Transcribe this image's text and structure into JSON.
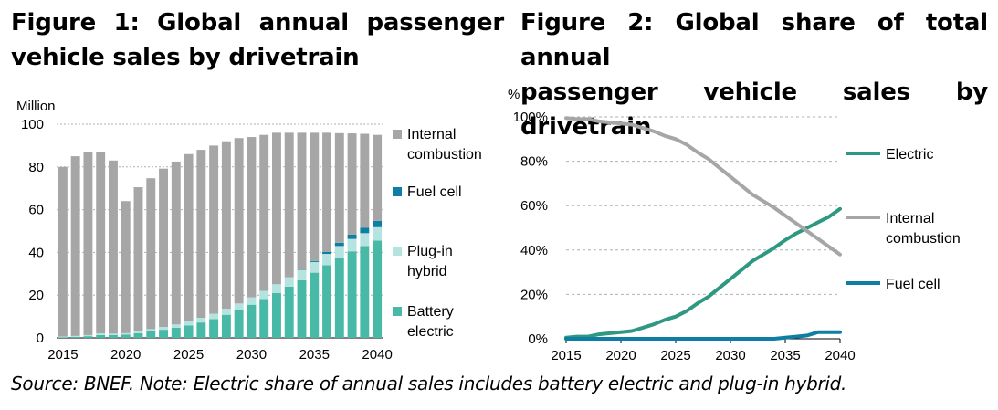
{
  "figure1": {
    "title_line1": "Figure 1: Global annual passenger",
    "title_line2": "vehicle sales by drivetrain"
  },
  "figure2": {
    "title_line1": "Figure 2: Global share of total annual",
    "title_line2": "passenger vehicle sales by drivetrain"
  },
  "source_note": "Source: BNEF. Note: Electric share of annual sales includes battery electric and plug-in hybrid.",
  "colors": {
    "internal_combustion": "#a6a6a6",
    "fuel_cell": "#0e7ea3",
    "plug_in_hybrid": "#b5e3df",
    "battery_electric": "#47b9a6",
    "electric_line": "#2e9882",
    "ice_line": "#a6a6a6",
    "fuel_cell_line": "#0e7ea3",
    "grid": "#b0b0b0"
  },
  "chart_data": [
    {
      "type": "bar",
      "stacked": true,
      "ylabel": "Million",
      "ylim": [
        0,
        100
      ],
      "yticks": [
        "0",
        "20",
        "40",
        "60",
        "80",
        "100"
      ],
      "xtick_labels": [
        "2015",
        "2020",
        "2025",
        "2030",
        "2035",
        "2040"
      ],
      "categories": [
        2015,
        2016,
        2017,
        2018,
        2019,
        2020,
        2021,
        2022,
        2023,
        2024,
        2025,
        2026,
        2027,
        2028,
        2029,
        2030,
        2031,
        2032,
        2033,
        2034,
        2035,
        2036,
        2037,
        2038,
        2039,
        2040
      ],
      "series": [
        {
          "name": "Battery electric",
          "legend": [
            "Battery",
            "electric"
          ],
          "values": [
            0.3,
            0.5,
            0.8,
            1.3,
            1.3,
            1.5,
            2.2,
            3.0,
            3.8,
            4.7,
            5.8,
            7.2,
            8.8,
            10.8,
            13.0,
            15.5,
            18.2,
            21.0,
            24.0,
            27.0,
            30.5,
            34.0,
            37.5,
            40.5,
            43.0,
            45.5
          ]
        },
        {
          "name": "Plug-in hybrid",
          "legend": [
            "Plug-in",
            "hybrid"
          ],
          "values": [
            0.3,
            0.4,
            0.5,
            0.8,
            0.7,
            0.7,
            0.9,
            1.1,
            1.3,
            1.6,
            1.9,
            2.2,
            2.5,
            2.8,
            3.1,
            3.5,
            3.8,
            4.1,
            4.4,
            4.7,
            5.0,
            5.3,
            5.5,
            5.8,
            6.0,
            6.3
          ]
        },
        {
          "name": "Fuel cell",
          "legend": [
            "Fuel cell"
          ],
          "values": [
            0,
            0,
            0,
            0,
            0,
            0,
            0,
            0,
            0,
            0,
            0,
            0,
            0,
            0,
            0,
            0,
            0,
            0,
            0,
            0.2,
            0.5,
            1.0,
            1.5,
            2.0,
            2.5,
            3.0
          ]
        },
        {
          "name": "Internal combustion",
          "legend": [
            "Internal",
            "combustion"
          ],
          "values": [
            79.4,
            84.1,
            85.7,
            84.9,
            81.0,
            61.8,
            67.4,
            70.6,
            74.1,
            76.2,
            78.3,
            78.6,
            78.7,
            78.4,
            77.4,
            75.0,
            73.0,
            70.9,
            67.6,
            64.1,
            60.0,
            55.7,
            51.3,
            47.4,
            44.0,
            40.2
          ]
        }
      ]
    },
    {
      "type": "line",
      "ylabel": "%",
      "ylim": [
        0,
        100
      ],
      "yticks": [
        "0%",
        "20%",
        "40%",
        "60%",
        "80%",
        "100%"
      ],
      "xtick_labels": [
        "2015",
        "2020",
        "2025",
        "2030",
        "2035",
        "2040"
      ],
      "x": [
        2015,
        2016,
        2017,
        2018,
        2019,
        2020,
        2021,
        2022,
        2023,
        2024,
        2025,
        2026,
        2027,
        2028,
        2029,
        2030,
        2031,
        2032,
        2033,
        2034,
        2035,
        2036,
        2037,
        2038,
        2039,
        2040
      ],
      "series": [
        {
          "name": "Electric",
          "legend": [
            "Electric"
          ],
          "values": [
            0.5,
            1,
            1,
            2,
            2.5,
            3,
            3.5,
            5,
            6.5,
            8.5,
            10,
            12.5,
            16,
            19,
            23,
            27,
            31,
            35,
            38,
            41,
            44.5,
            47.5,
            50,
            52.5,
            55,
            58.5
          ]
        },
        {
          "name": "Internal combustion",
          "legend": [
            "Internal",
            "combustion"
          ],
          "values": [
            99.5,
            99,
            99,
            98,
            97.5,
            97,
            96.5,
            95,
            93.5,
            91.5,
            90,
            87.5,
            84,
            81,
            77,
            73,
            69,
            65,
            62,
            59,
            55.5,
            52,
            48.5,
            45,
            41.5,
            38
          ]
        },
        {
          "name": "Fuel cell",
          "legend": [
            "Fuel cell"
          ],
          "values": [
            0,
            0,
            0,
            0,
            0,
            0,
            0,
            0,
            0,
            0,
            0,
            0,
            0,
            0,
            0,
            0,
            0,
            0,
            0,
            0,
            0.5,
            1,
            1.5,
            3,
            3,
            3
          ]
        }
      ]
    }
  ]
}
